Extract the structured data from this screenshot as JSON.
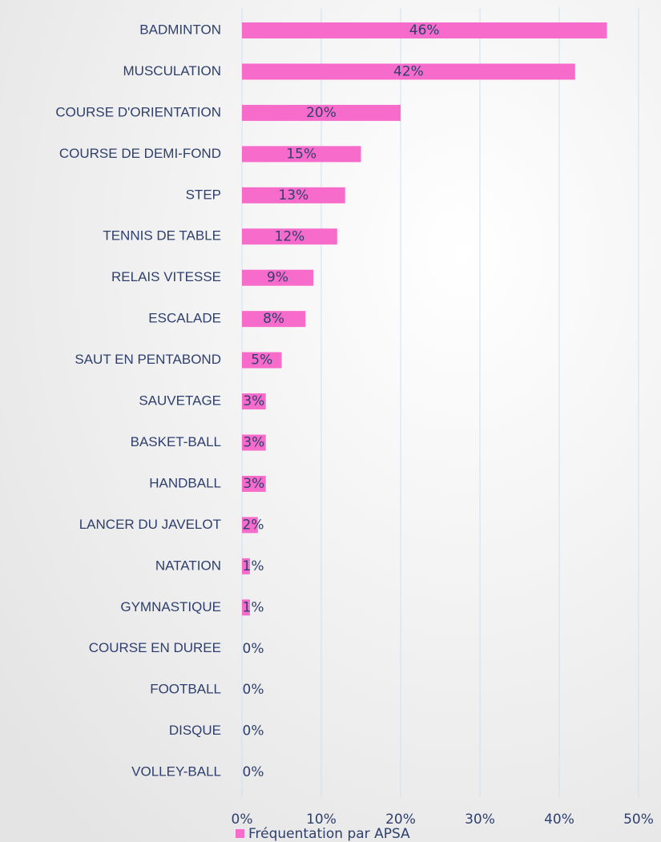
{
  "chart_data": {
    "type": "bar",
    "orientation": "horizontal",
    "categories": [
      "BADMINTON",
      "MUSCULATION",
      "COURSE D'ORIENTATION",
      "COURSE DE DEMI-FOND",
      "STEP",
      "TENNIS DE TABLE",
      "RELAIS VITESSE",
      "ESCALADE",
      "SAUT EN PENTABOND",
      "SAUVETAGE",
      "BASKET-BALL",
      "HANDBALL",
      "LANCER DU JAVELOT",
      "NATATION",
      "GYMNASTIQUE",
      "COURSE EN DUREE",
      "FOOTBALL",
      "DISQUE",
      "VOLLEY-BALL"
    ],
    "series": [
      {
        "name": "Fréquentation par APSA",
        "color": "#f76bcb",
        "values": [
          46,
          42,
          20,
          15,
          13,
          12,
          9,
          8,
          5,
          3,
          3,
          3,
          2,
          1,
          1,
          0,
          0,
          0,
          0
        ],
        "value_labels": [
          "46%",
          "42%",
          "20%",
          "15%",
          "13%",
          "12%",
          "9%",
          "8%",
          "5%",
          "3%",
          "3%",
          "3%",
          "2%",
          "1%",
          "1%",
          "0%",
          "0%",
          "0%",
          "0%"
        ]
      }
    ],
    "xlim": [
      0,
      50
    ],
    "xticks": [
      {
        "value": 0,
        "label": "0%"
      },
      {
        "value": 10,
        "label": "10%"
      },
      {
        "value": 20,
        "label": "20%"
      },
      {
        "value": 30,
        "label": "30%"
      },
      {
        "value": 40,
        "label": "40%"
      },
      {
        "value": 50,
        "label": "50%"
      }
    ],
    "grid": true
  }
}
